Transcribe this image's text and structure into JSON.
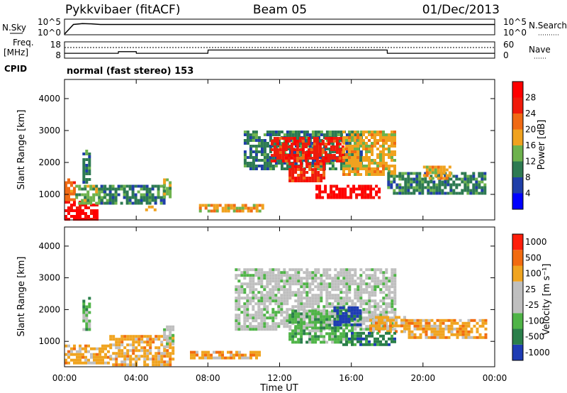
{
  "header": {
    "station": "Pykkvibaer (fitACF)",
    "beam": "Beam 05",
    "date": "01/Dec/2013"
  },
  "noise_panel": {
    "left_label": "N.Sky",
    "right_label": "N.Search",
    "left_ticks": [
      "10^5",
      "10^0"
    ],
    "right_ticks": [
      "10^5",
      "10^0"
    ]
  },
  "freq_panel": {
    "left_label_1": "Freq.",
    "left_label_2": "[MHz]",
    "right_label": "Nave",
    "left_ticks": [
      "18",
      "8"
    ],
    "right_ticks": [
      "60",
      "0"
    ]
  },
  "cpid": {
    "label": "CPID",
    "text": "normal (fast stereo) 153"
  },
  "x_axis": {
    "label": "Time UT",
    "ticks": [
      "00:00",
      "04:00",
      "08:00",
      "12:00",
      "16:00",
      "20:00",
      "00:00"
    ]
  },
  "power_panel": {
    "ylabel": "Slant Range [km]",
    "yticks": [
      "4000",
      "3000",
      "2000",
      "1000"
    ],
    "colorbar_label": "Power [dB]",
    "colorbar_ticks": [
      "28",
      "24",
      "20",
      "16",
      "12",
      "8",
      "4"
    ],
    "colors": [
      "#0000ff",
      "#1f3ea8",
      "#2d7a52",
      "#6db24d",
      "#f0a21f",
      "#f06a14",
      "#f01a0a",
      "#ff0000"
    ]
  },
  "velocity_panel": {
    "ylabel": "Slant Range [km]",
    "yticks": [
      "4000",
      "3000",
      "2000",
      "1000"
    ],
    "colorbar_label": "Velocity [m s⁻¹]",
    "colorbar_ticks": [
      "1000",
      "500",
      "100",
      "25",
      "-25",
      "-100",
      "-500",
      "-1000"
    ],
    "colors": [
      "#1e3cb4",
      "#2a7f4a",
      "#4fb447",
      "#bfbfbf",
      "#bfbfbf",
      "#f0a420",
      "#f26b10",
      "#ff1e0a"
    ]
  },
  "chart_data": [
    {
      "type": "line",
      "name": "noise",
      "x_hours": [
        0,
        0.5,
        1,
        1.5,
        2,
        3,
        4,
        6,
        8,
        10,
        12,
        14,
        16,
        18,
        20,
        22,
        24
      ],
      "sky_log10": [
        0.2,
        3.3,
        3.6,
        3.5,
        3.3,
        3.3,
        3.3,
        3.3,
        3.3,
        3.3,
        3.3,
        3.3,
        3.3,
        3.3,
        3.3,
        3.3,
        3.3
      ],
      "ylim": [
        0,
        5
      ]
    },
    {
      "type": "line",
      "name": "frequency",
      "x_hours": [
        0,
        3,
        3.01,
        4,
        4.01,
        6,
        6.01,
        8,
        8.01,
        12,
        14,
        16,
        18,
        18.01,
        20,
        24
      ],
      "freq_mhz": [
        11.0,
        11.0,
        12.0,
        12.0,
        11.0,
        11.0,
        11.0,
        11.0,
        13.0,
        13.0,
        13.0,
        13.0,
        13.0,
        11.0,
        11.0,
        11.0
      ],
      "ylim": [
        8,
        18
      ]
    },
    {
      "type": "heatmap",
      "name": "power",
      "xlim": [
        0,
        24
      ],
      "ylim": [
        200,
        4600
      ],
      "regions": [
        {
          "x": [
            0,
            1.8
          ],
          "y": [
            250,
            800
          ],
          "level": 7
        },
        {
          "x": [
            0,
            0.6
          ],
          "y": [
            800,
            1500
          ],
          "level": 5
        },
        {
          "x": [
            0.6,
            2.2
          ],
          "y": [
            700,
            1300
          ],
          "level": 3
        },
        {
          "x": [
            1.0,
            1.4
          ],
          "y": [
            1400,
            2400
          ],
          "level": 2
        },
        {
          "x": [
            2.0,
            5.5
          ],
          "y": [
            700,
            1300
          ],
          "level": 2
        },
        {
          "x": [
            4.5,
            5.0
          ],
          "y": [
            550,
            650
          ],
          "level": 4
        },
        {
          "x": [
            5.5,
            5.9
          ],
          "y": [
            900,
            1500
          ],
          "level": 3
        },
        {
          "x": [
            7.5,
            11.0
          ],
          "y": [
            450,
            700
          ],
          "level": 4
        },
        {
          "x": [
            10.0,
            16.5
          ],
          "y": [
            1800,
            3000
          ],
          "level": 2
        },
        {
          "x": [
            11.5,
            15.5
          ],
          "y": [
            2000,
            2800
          ],
          "level": 6
        },
        {
          "x": [
            12.5,
            14.5
          ],
          "y": [
            1400,
            2000
          ],
          "level": 6
        },
        {
          "x": [
            14.0,
            17.5
          ],
          "y": [
            900,
            1300
          ],
          "level": 7
        },
        {
          "x": [
            15.5,
            18.5
          ],
          "y": [
            1600,
            3000
          ],
          "level": 4
        },
        {
          "x": [
            18.0,
            23.5
          ],
          "y": [
            1000,
            1700
          ],
          "level": 2
        },
        {
          "x": [
            20.0,
            21.5
          ],
          "y": [
            1500,
            1900
          ],
          "level": 4
        }
      ]
    },
    {
      "type": "heatmap",
      "name": "velocity",
      "xlim": [
        0,
        24
      ],
      "ylim": [
        200,
        4600
      ],
      "regions": [
        {
          "x": [
            0,
            2.5
          ],
          "y": [
            300,
            900
          ],
          "level": 5
        },
        {
          "x": [
            2.5,
            6.0
          ],
          "y": [
            300,
            1200
          ],
          "level": 5
        },
        {
          "x": [
            1.0,
            1.4
          ],
          "y": [
            1400,
            2400
          ],
          "level": 2
        },
        {
          "x": [
            5.5,
            6.0
          ],
          "y": [
            800,
            1500
          ],
          "level": 3
        },
        {
          "x": [
            7.0,
            11.0
          ],
          "y": [
            450,
            700
          ],
          "level": 5
        },
        {
          "x": [
            9.5,
            18.5
          ],
          "y": [
            1400,
            3300
          ],
          "level": 3
        },
        {
          "x": [
            12.5,
            16.0
          ],
          "y": [
            1000,
            2000
          ],
          "level": 2
        },
        {
          "x": [
            15.0,
            16.5
          ],
          "y": [
            1500,
            2100
          ],
          "level": 0
        },
        {
          "x": [
            17.0,
            19.0
          ],
          "y": [
            1300,
            1800
          ],
          "level": 5
        },
        {
          "x": [
            19.0,
            23.5
          ],
          "y": [
            1100,
            1700
          ],
          "level": 5
        },
        {
          "x": [
            15.5,
            18.5
          ],
          "y": [
            900,
            1300
          ],
          "level": 1
        }
      ]
    }
  ]
}
